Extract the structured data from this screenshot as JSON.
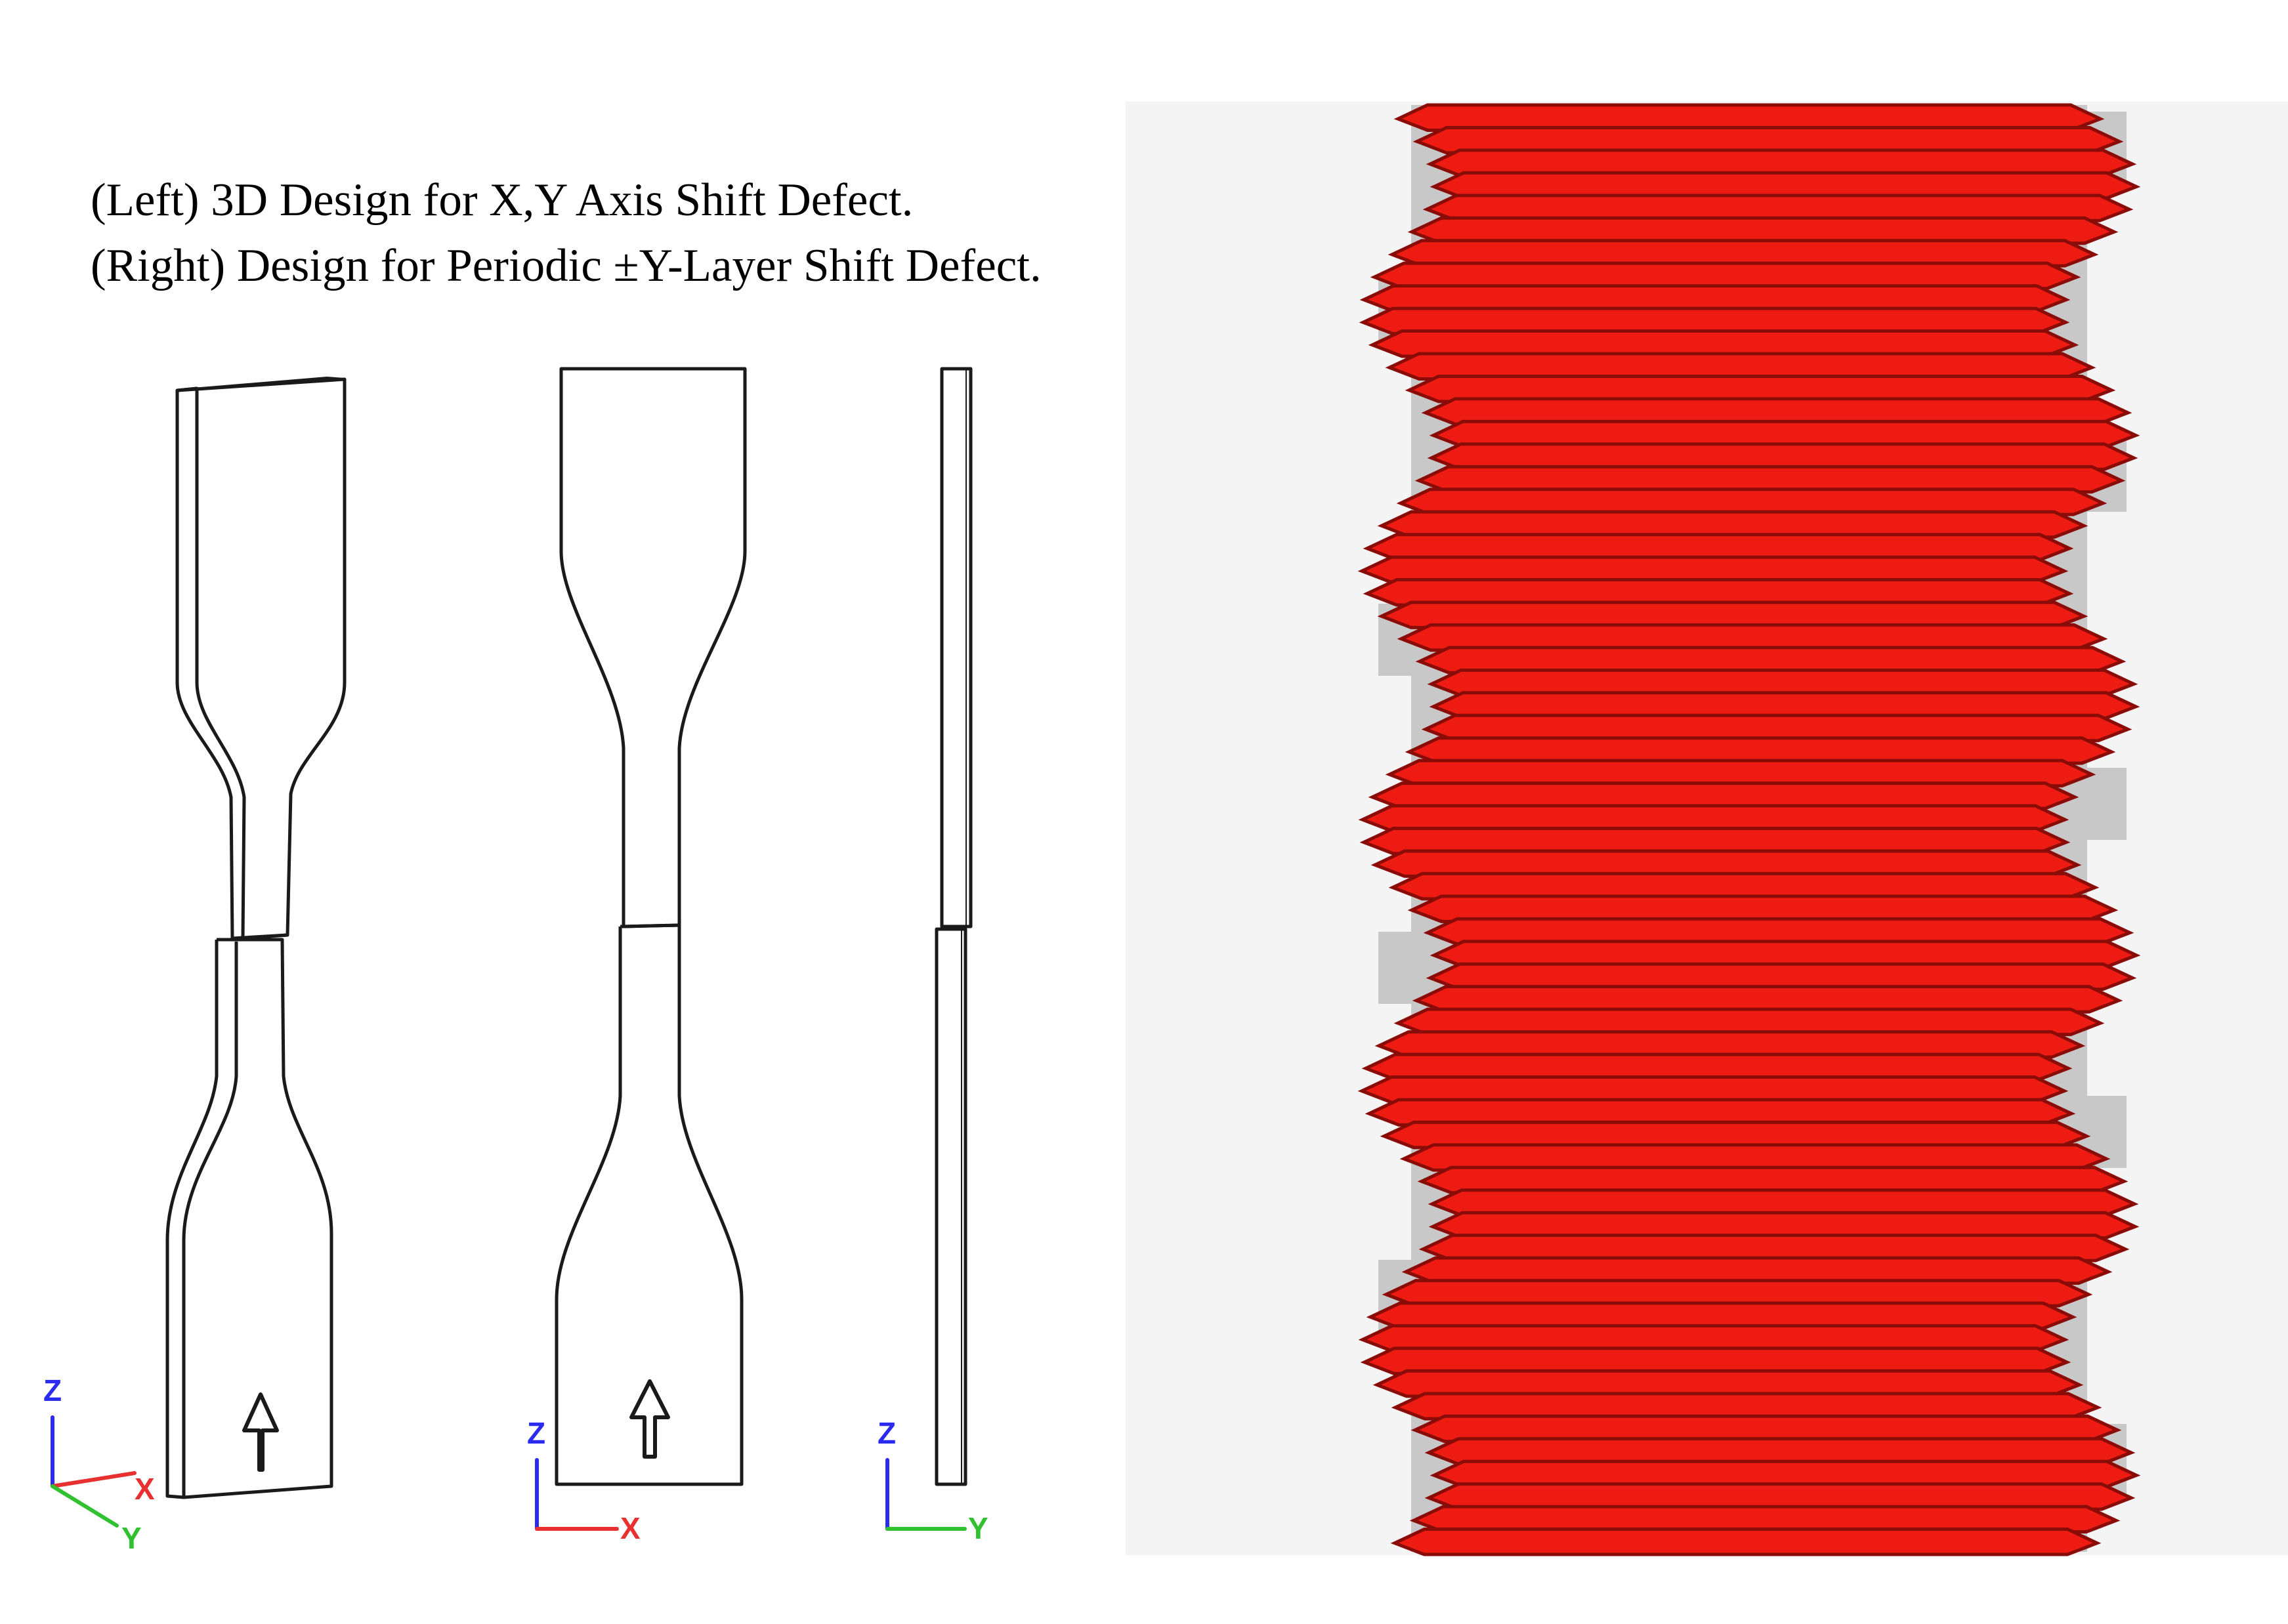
{
  "caption": {
    "left_line": "(Left) 3D Design for X,Y Axis Shift Defect.",
    "right_line": "(Right) Design for Periodic ±Y-Layer Shift Defect."
  },
  "axes": {
    "iso": {
      "z": "Z",
      "x": "X",
      "y": "Y"
    },
    "front": {
      "z": "Z",
      "x": "X"
    },
    "side": {
      "z": "Z",
      "y": "Y"
    }
  },
  "colors": {
    "outline": "#1a1a1a",
    "axis_z": "#2a2af0",
    "axis_x": "#e83030",
    "axis_y": "#30c030",
    "layer": "#ee1b12",
    "layer_dark": "#8a0c08",
    "shadow": "#c8c8c8",
    "panel_bg": "#f4f4f4"
  },
  "icons": [
    "build-direction-arrow-icon"
  ]
}
